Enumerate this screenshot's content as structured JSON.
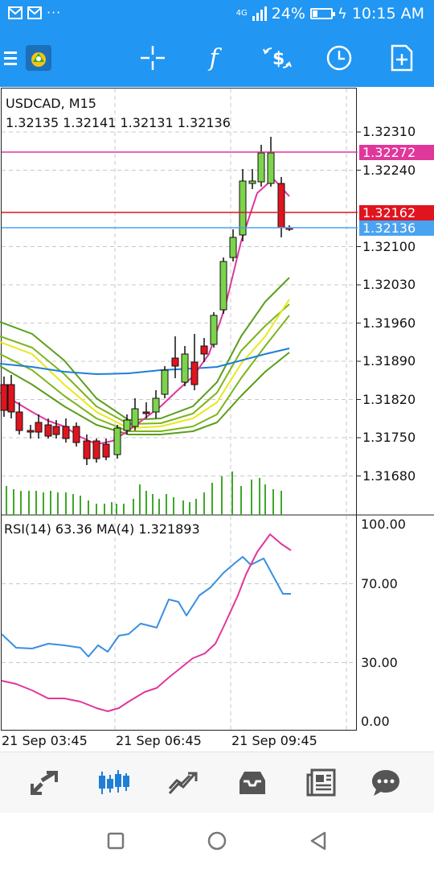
{
  "status_bar": {
    "network": "4G",
    "battery": "24%",
    "battery_level": 0.24,
    "time": "10:15 AM",
    "left_icons": [
      "mail-icon",
      "mail-icon",
      "more-dots-icon"
    ]
  },
  "toolbar": {
    "icons": [
      "menu-icon",
      "app-logo-icon",
      "crosshair-icon",
      "function-icon",
      "trade-dollar-icon",
      "clock-icon",
      "new-order-icon"
    ]
  },
  "chart": {
    "symbol_timeframe": "USDCAD, M15",
    "ohlc": "1.32135 1.32141 1.32131 1.32136",
    "rsi_label": "RSI(14) 63.36 MA(4) 1.321893",
    "price_ticks": [
      "1.32310",
      "1.32240",
      "1.32100",
      "1.32030",
      "1.31960",
      "1.31890",
      "1.31820",
      "1.31750",
      "1.31680"
    ],
    "rsi_ticks": [
      "100.00",
      "70.00",
      "30.00",
      "0.00"
    ],
    "time_ticks": [
      "21 Sep 03:45",
      "21 Sep 06:45",
      "21 Sep 09:45"
    ],
    "ask_label": "1.32272",
    "bid_label": "1.32162",
    "last_label": "1.32136",
    "colors": {
      "ask": "#e0379b",
      "bid": "#e0141e",
      "last": "#4aa3f0",
      "bull": "#7cd44a",
      "bear": "#e0141e",
      "ma": "#e0379b",
      "bands_outer": "#5a9f1c",
      "bands_mid": "#7cb51c",
      "bands_inner": "#e8e81e",
      "trend": "#1e7fd6",
      "volume": "#3ea82a",
      "rsi": "#3a8fe0",
      "rsi_ma": "#e0379b"
    }
  },
  "bottom_nav": {
    "icons": [
      "quotes-icon",
      "charts-icon",
      "trade-icon",
      "history-icon",
      "news-icon",
      "messages-icon"
    ],
    "active": "charts-icon"
  },
  "system_nav": {
    "icons": [
      "recents-icon",
      "home-icon",
      "back-icon"
    ]
  }
}
